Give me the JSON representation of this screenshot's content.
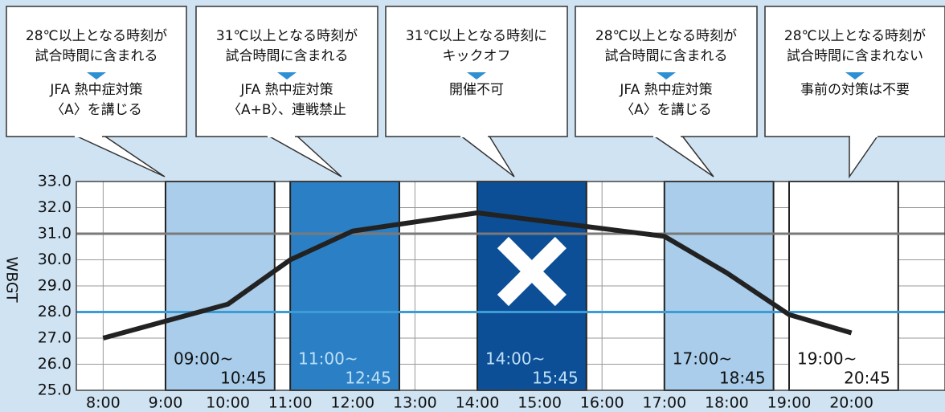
{
  "chart_data": {
    "type": "line",
    "ylabel": "WBGT",
    "x": [
      8,
      10,
      11,
      12,
      14,
      15,
      16,
      17,
      18,
      19,
      20
    ],
    "values": [
      27.0,
      28.3,
      30.0,
      31.1,
      31.8,
      31.5,
      31.2,
      30.9,
      29.5,
      27.9,
      27.2
    ],
    "color": "#222222",
    "xlim": [
      7.57,
      21.5
    ],
    "xticks": [
      {
        "value": 8,
        "label": "8:00"
      },
      {
        "value": 9,
        "label": "9:00"
      },
      {
        "value": 10,
        "label": "10:00"
      },
      {
        "value": 11,
        "label": "11:00"
      },
      {
        "value": 12,
        "label": "12:00"
      },
      {
        "value": 13,
        "label": "13:00"
      },
      {
        "value": 14,
        "label": "14:00"
      },
      {
        "value": 15,
        "label": "15:00"
      },
      {
        "value": 16,
        "label": "16:00"
      },
      {
        "value": 17,
        "label": "17:00"
      },
      {
        "value": 18,
        "label": "18:00"
      },
      {
        "value": 19,
        "label": "19:00"
      },
      {
        "value": 20,
        "label": "20:00"
      }
    ],
    "ylim": [
      25,
      33
    ],
    "yticks": [
      {
        "value": 25,
        "label": "25.0"
      },
      {
        "value": 26,
        "label": "26.0"
      },
      {
        "value": 27,
        "label": "27.0"
      },
      {
        "value": 28,
        "label": "28.0"
      },
      {
        "value": 29,
        "label": "29.0"
      },
      {
        "value": 30,
        "label": "30.0"
      },
      {
        "value": 31,
        "label": "31.0"
      },
      {
        "value": 32,
        "label": "32.0"
      },
      {
        "value": 33,
        "label": "33.0"
      }
    ],
    "grid": true,
    "reference_lines": [
      {
        "value": 31,
        "color": "#7a7a7a"
      },
      {
        "value": 28,
        "color": "#3d9bd6"
      }
    ],
    "windows": [
      {
        "start": 9,
        "end": 10.75,
        "start_label": "09:00~",
        "end_label": "10:45",
        "color": "#a9cdea",
        "text_color": "#111111"
      },
      {
        "start": 11,
        "end": 12.75,
        "start_label": "11:00~",
        "end_label": "12:45",
        "color": "#2b80c5",
        "text_color": "#bfe0f7"
      },
      {
        "start": 14,
        "end": 15.75,
        "start_label": "14:00~",
        "end_label": "15:45",
        "color": "#0c4f97",
        "text_color": "#bfe0f7",
        "cross": true
      },
      {
        "start": 17,
        "end": 18.75,
        "start_label": "17:00~",
        "end_label": "18:45",
        "color": "#a9cdea",
        "text_color": "#111111"
      },
      {
        "start": 19,
        "end": 20.75,
        "start_label": "19:00~",
        "end_label": "20:45",
        "color": "#ffffff",
        "text_color": "#111111"
      }
    ],
    "callouts": [
      {
        "condition": [
          "28℃以上となる時刻が",
          "試合時間に含まれる"
        ],
        "action": [
          "JFA 熱中症対策",
          "〈A〉を講じる"
        ]
      },
      {
        "condition": [
          "31℃以上となる時刻が",
          "試合時間に含まれる"
        ],
        "action": [
          "JFA 熱中症対策",
          "〈A+B〉、連戦禁止"
        ]
      },
      {
        "condition": [
          "31℃以上となる時刻に",
          "キックオフ"
        ],
        "action": [
          "開催不可"
        ]
      },
      {
        "condition": [
          "28℃以上となる時刻が",
          "試合時間に含まれる"
        ],
        "action": [
          "JFA 熱中症対策",
          "〈A〉を講じる"
        ]
      },
      {
        "condition": [
          "28℃以上となる時刻が",
          "試合時間に含まれない"
        ],
        "action": [
          "事前の対策は不要"
        ]
      }
    ]
  }
}
